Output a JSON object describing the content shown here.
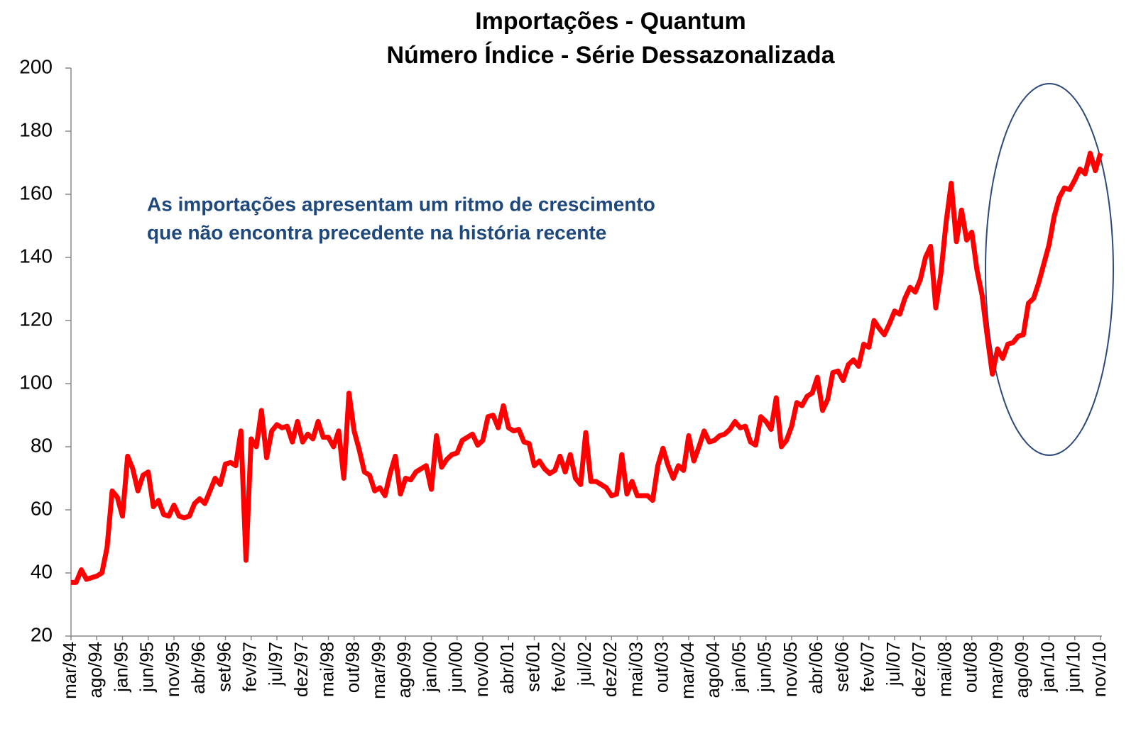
{
  "chart_data": {
    "type": "line",
    "title": "Importações - Quantum",
    "subtitle": "Número Índice - Série Dessazonalizada",
    "annotation": [
      "As importações apresentam um ritmo de crescimento",
      "que não encontra precedente na história recente"
    ],
    "categories": [
      "mar/94",
      null,
      null,
      null,
      null,
      "ago/94",
      null,
      null,
      null,
      null,
      "jan/95",
      null,
      null,
      null,
      null,
      "jun/95",
      null,
      null,
      null,
      null,
      "nov/95",
      null,
      null,
      null,
      null,
      "abr/96",
      null,
      null,
      null,
      null,
      "set/96",
      null,
      null,
      null,
      null,
      "fev/97",
      null,
      null,
      null,
      null,
      "jul/97",
      null,
      null,
      null,
      null,
      "dez/97",
      null,
      null,
      null,
      null,
      "mai/98",
      null,
      null,
      null,
      null,
      "out/98",
      null,
      null,
      null,
      null,
      "mar/99",
      null,
      null,
      null,
      null,
      "ago/99",
      null,
      null,
      null,
      null,
      "jan/00",
      null,
      null,
      null,
      null,
      "jun/00",
      null,
      null,
      null,
      null,
      "nov/00",
      null,
      null,
      null,
      null,
      "abr/01",
      null,
      null,
      null,
      null,
      "set/01",
      null,
      null,
      null,
      null,
      "fev/02",
      null,
      null,
      null,
      null,
      "jul/02",
      null,
      null,
      null,
      null,
      "dez/02",
      null,
      null,
      null,
      null,
      "mai/03",
      null,
      null,
      null,
      null,
      "out/03",
      null,
      null,
      null,
      null,
      "mar/04",
      null,
      null,
      null,
      null,
      "ago/04",
      null,
      null,
      null,
      null,
      "jan/05",
      null,
      null,
      null,
      null,
      "jun/05",
      null,
      null,
      null,
      null,
      "nov/05",
      null,
      null,
      null,
      null,
      "abr/06",
      null,
      null,
      null,
      null,
      "set/06",
      null,
      null,
      null,
      null,
      "fev/07",
      null,
      null,
      null,
      null,
      "jul/07",
      null,
      null,
      null,
      null,
      "dez/07",
      null,
      null,
      null,
      null,
      "mai/08",
      null,
      null,
      null,
      null,
      "out/08",
      null,
      null,
      null,
      null,
      "mar/09",
      null,
      null,
      null,
      null,
      "ago/09",
      null,
      null,
      null,
      null,
      "jan/10",
      null,
      null,
      null,
      null,
      "jun/10",
      null,
      null,
      null,
      null,
      "nov/10"
    ],
    "series": [
      {
        "color": "#ff0000",
        "values": [
          37,
          37,
          41,
          38,
          38.5,
          39,
          40,
          48,
          66,
          64,
          58,
          77,
          73,
          66,
          71,
          72,
          61,
          63,
          58.5,
          58,
          61.5,
          58,
          57.5,
          58,
          62,
          63.5,
          62,
          66,
          70,
          68,
          74.5,
          75,
          74,
          85,
          44,
          82.5,
          80,
          91.5,
          76.5,
          85,
          87,
          86,
          86.5,
          81.5,
          88,
          81.5,
          84,
          82.5,
          88,
          83,
          83,
          80,
          85,
          70,
          97,
          85,
          79,
          72,
          71,
          66,
          67,
          64.5,
          71.5,
          77,
          65,
          70,
          69.5,
          72,
          73,
          74,
          66.5,
          83.5,
          73.5,
          76,
          77.5,
          78,
          82,
          83,
          84,
          80.5,
          82,
          89.5,
          90,
          86,
          93,
          86,
          85,
          85.5,
          81.5,
          81,
          74,
          75.5,
          73,
          71.5,
          72.5,
          77,
          72,
          77.5,
          70,
          68,
          84.5,
          69,
          69,
          68,
          67,
          64.5,
          65,
          77.5,
          65,
          69,
          64.5,
          64.5,
          64.5,
          63,
          74,
          79.5,
          74,
          70,
          74,
          72.5,
          83.5,
          75.5,
          80,
          85,
          81.5,
          82,
          83.5,
          84,
          85.5,
          88,
          86,
          86.5,
          81.5,
          80.5,
          89.5,
          88,
          85.5,
          95.5,
          80,
          82,
          86.5,
          94,
          93,
          96,
          97,
          102,
          91.5,
          95,
          103.5,
          104,
          101,
          106,
          107.5,
          105.5,
          112.5,
          111.5,
          120,
          117.5,
          115.5,
          119,
          123,
          122,
          127,
          130.5,
          129,
          133,
          140,
          143.5,
          124,
          135,
          151,
          163.5,
          145,
          155,
          145.5,
          148,
          136,
          128,
          115,
          103,
          111,
          108,
          112.5,
          113,
          115,
          115.5,
          125.5,
          127,
          132,
          138,
          144,
          153,
          159,
          162,
          161.5,
          164.5,
          168,
          166.5,
          173,
          167.5,
          173
        ]
      }
    ],
    "ylim": [
      20,
      200
    ],
    "yticks": [
      20,
      40,
      60,
      80,
      100,
      120,
      140,
      160,
      180,
      200
    ]
  }
}
